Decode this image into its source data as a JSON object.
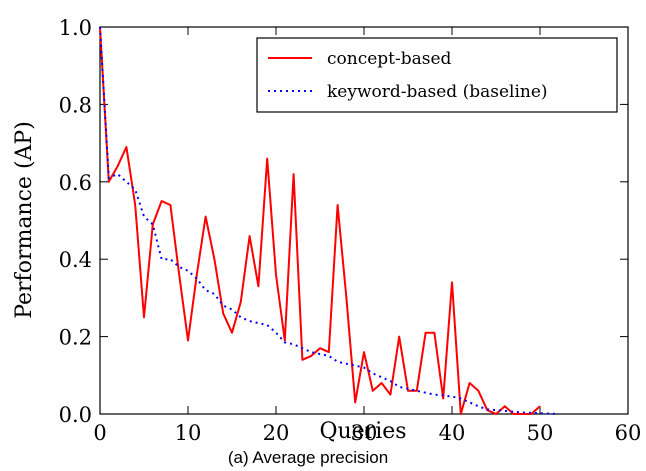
{
  "chart_data": {
    "type": "line",
    "xlabel": "Queries",
    "ylabel": "Performance (AP)",
    "caption": "(a) Average precision",
    "xlim": [
      0,
      60
    ],
    "ylim": [
      0,
      1.0
    ],
    "xticks": [
      "0",
      "10",
      "20",
      "30",
      "40",
      "50",
      "60"
    ],
    "yticks": [
      "0.0",
      "0.2",
      "0.4",
      "0.6",
      "0.8",
      "1.0"
    ],
    "grid": false,
    "legend_position": "top-right",
    "series": [
      {
        "name": "concept-based",
        "color": "#ff0000",
        "style": "solid",
        "x": [
          0,
          1,
          2,
          3,
          4,
          5,
          6,
          7,
          8,
          9,
          10,
          11,
          12,
          13,
          14,
          15,
          16,
          17,
          18,
          19,
          20,
          21,
          22,
          23,
          24,
          25,
          26,
          27,
          28,
          29,
          30,
          31,
          32,
          33,
          34,
          35,
          36,
          37,
          38,
          39,
          40,
          41,
          42,
          43,
          44,
          45,
          46,
          47,
          48,
          49,
          50
        ],
        "y": [
          1.0,
          0.6,
          0.64,
          0.69,
          0.54,
          0.25,
          0.49,
          0.55,
          0.54,
          0.36,
          0.19,
          0.36,
          0.51,
          0.4,
          0.26,
          0.21,
          0.29,
          0.46,
          0.33,
          0.66,
          0.36,
          0.19,
          0.62,
          0.14,
          0.15,
          0.17,
          0.16,
          0.54,
          0.3,
          0.03,
          0.16,
          0.06,
          0.08,
          0.05,
          0.2,
          0.06,
          0.06,
          0.21,
          0.21,
          0.04,
          0.34,
          0.0,
          0.08,
          0.06,
          0.01,
          0.0,
          0.02,
          0.0,
          0.0,
          0.0,
          0.02
        ]
      },
      {
        "name": "keyword-based (baseline)",
        "color": "#0000ff",
        "style": "dotted",
        "x": [
          0,
          1,
          2,
          3,
          4,
          5,
          6,
          7,
          8,
          9,
          10,
          11,
          12,
          13,
          14,
          15,
          16,
          17,
          18,
          19,
          20,
          21,
          22,
          23,
          24,
          25,
          26,
          27,
          28,
          29,
          30,
          31,
          32,
          33,
          34,
          35,
          36,
          37,
          38,
          39,
          40,
          41,
          42,
          43,
          44,
          45,
          46,
          47,
          48,
          49,
          50,
          51,
          52
        ],
        "y": [
          1.0,
          0.61,
          0.62,
          0.6,
          0.58,
          0.51,
          0.49,
          0.4,
          0.4,
          0.38,
          0.37,
          0.35,
          0.32,
          0.31,
          0.28,
          0.27,
          0.25,
          0.24,
          0.235,
          0.23,
          0.21,
          0.185,
          0.18,
          0.17,
          0.16,
          0.155,
          0.15,
          0.135,
          0.13,
          0.125,
          0.12,
          0.105,
          0.095,
          0.085,
          0.07,
          0.065,
          0.06,
          0.055,
          0.05,
          0.048,
          0.045,
          0.04,
          0.03,
          0.02,
          0.012,
          0.01,
          0.008,
          0.006,
          0.004,
          0.003,
          0.002,
          0.001,
          0.0
        ]
      }
    ]
  }
}
